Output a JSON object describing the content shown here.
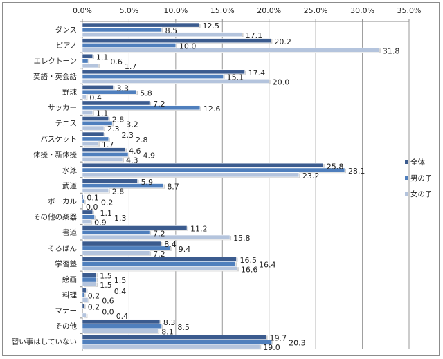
{
  "chart_data": {
    "type": "bar",
    "orientation": "horizontal",
    "categories": [
      "ダンス",
      "ピアノ",
      "エレクトーン",
      "英語・英会話",
      "野球",
      "サッカー",
      "テニス",
      "バスケット",
      "体操・新体操",
      "水泳",
      "武道",
      "ボーカル",
      "その他の楽器",
      "書道",
      "そろばん",
      "学習塾",
      "絵画",
      "料理",
      "マナー",
      "その他",
      "習い事はしていない"
    ],
    "series": [
      {
        "name": "全体",
        "color": "#3b5b8e",
        "values": [
          12.5,
          20.2,
          1.1,
          17.4,
          3.3,
          7.2,
          2.8,
          2.3,
          4.6,
          25.8,
          5.9,
          0.1,
          1.1,
          11.2,
          8.4,
          16.5,
          1.5,
          0.4,
          0.2,
          8.3,
          19.7
        ]
      },
      {
        "name": "男の子",
        "color": "#4f7fbd",
        "values": [
          8.5,
          10.0,
          0.6,
          15.1,
          5.8,
          12.6,
          3.2,
          2.8,
          4.9,
          28.1,
          8.7,
          0.2,
          1.3,
          7.2,
          9.4,
          16.4,
          1.5,
          0.2,
          0.0,
          8.5,
          20.3
        ]
      },
      {
        "name": "女の子",
        "color": "#b4c4dd",
        "values": [
          17.1,
          31.8,
          1.7,
          20.0,
          0.4,
          1.1,
          2.3,
          1.7,
          4.3,
          23.2,
          2.8,
          0.0,
          0.9,
          15.8,
          7.2,
          16.6,
          1.5,
          0.6,
          0.4,
          8.1,
          19.0
        ]
      }
    ],
    "x_ticks": [
      "0.0%",
      "5.0%",
      "10.0%",
      "15.0%",
      "20.0%",
      "25.0%",
      "30.0%",
      "35.0%"
    ],
    "xlim": [
      0,
      35
    ],
    "x_axis_position": "top",
    "grid": true,
    "legend_position": "right",
    "data_labels": true
  }
}
